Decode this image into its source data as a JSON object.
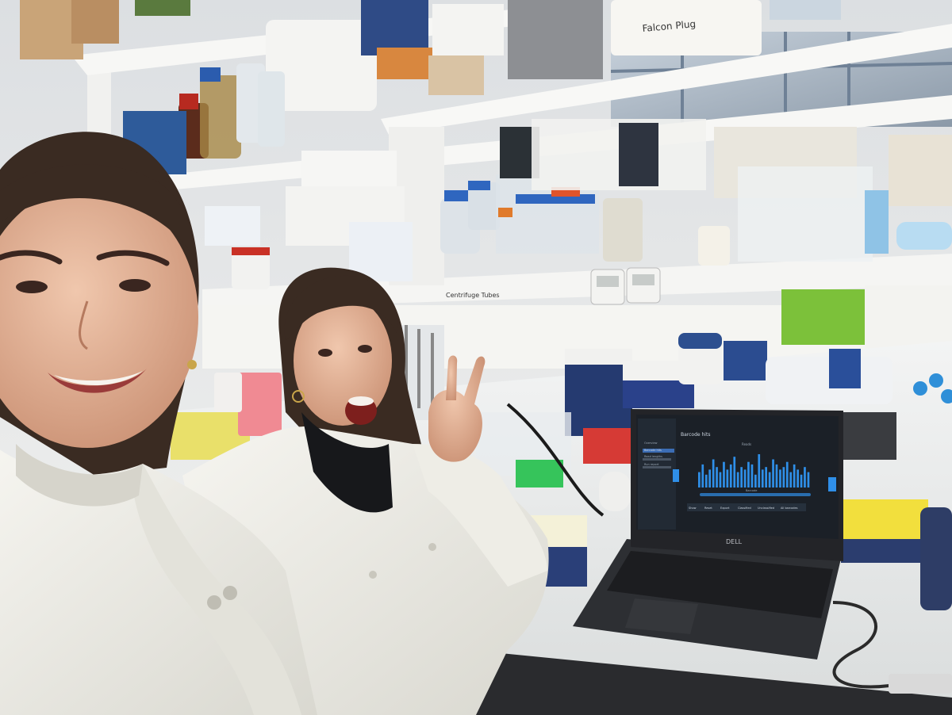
{
  "scene": {
    "description_kind": "photo",
    "colors": {
      "wall": "#dfe3e6",
      "shelf": "#f4f4f2",
      "labcoat": "#f1f0ea",
      "hair": "#3a2b22",
      "skin": "#e7b79b",
      "bench": "#eceeee",
      "laptop_body": "#2b2d31",
      "screen_bg": "#1b2027",
      "bar_accent": "#2f8fe8",
      "window_frame": "#8fa2b8"
    }
  },
  "shelf_labels": {
    "tray_label": "Falcon Plug",
    "shelf_tag": "Centrifuge Tubes"
  },
  "laptop": {
    "brand": "DELL",
    "app": {
      "page_title": "Barcode hits",
      "sidebar_items": [
        "Overview",
        "Barcode hits",
        "Read lengths",
        "Run report"
      ],
      "chart_title": "Reads",
      "x_label": "Barcode",
      "controls": [
        "Show",
        "Reset",
        "Export",
        "Classified",
        "Unclassified",
        "All barcodes"
      ]
    },
    "chart_data": {
      "type": "bar",
      "title": "Reads",
      "xlabel": "Barcode",
      "ylabel": "",
      "values": [
        6,
        9,
        5,
        7,
        11,
        8,
        6,
        10,
        7,
        9,
        12,
        6,
        8,
        7,
        10,
        9,
        5,
        13,
        7,
        8,
        6,
        11,
        9,
        7,
        8,
        10,
        6,
        9,
        7,
        5,
        8,
        6
      ]
    }
  }
}
